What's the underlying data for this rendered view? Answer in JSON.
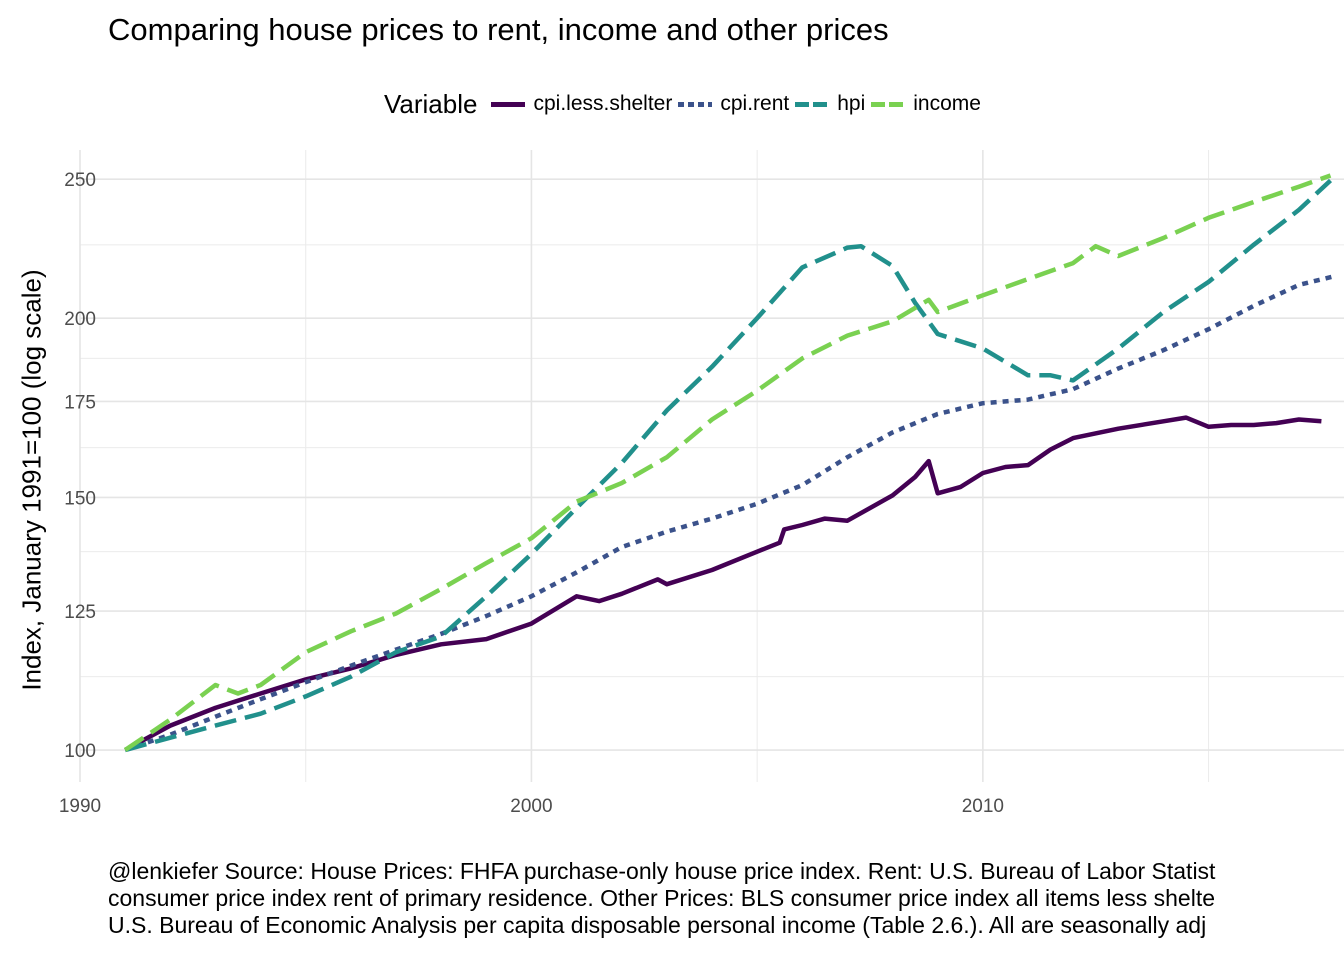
{
  "chart_data": {
    "type": "line",
    "title": "Comparing house prices to rent, income and other prices",
    "xlabel": "",
    "ylabel": "Index, January 1991=100 (log scale)",
    "y_scale": "log",
    "xlim": [
      1990,
      2018
    ],
    "ylim": [
      95,
      262
    ],
    "x_ticks": [
      1990,
      2000,
      2010
    ],
    "y_ticks": [
      100,
      125,
      150,
      175,
      200,
      250
    ],
    "grid": true,
    "legend_position": "top",
    "legend_title": "Variable",
    "caption": [
      "@lenkiefer Source: House Prices: FHFA purchase-only house price index. Rent: U.S. Bureau of Labor Statist",
      "consumer price index rent of primary residence. Other Prices: BLS consumer price index all items less shelte",
      "U.S. Bureau of Economic Analysis per capita disposable personal income (Table 2.6.). All are seasonally adj"
    ],
    "series": [
      {
        "name": "cpi.less.shelter",
        "color": "#440154",
        "style": "solid",
        "x": [
          1991,
          1992,
          1993,
          1994,
          1995,
          1996,
          1997,
          1998,
          1999,
          2000,
          2001,
          2001.5,
          2002,
          2002.8,
          2003,
          2004,
          2005,
          2005.5,
          2005.6,
          2006,
          2006.5,
          2007,
          2008,
          2008.5,
          2008.8,
          2009,
          2009.5,
          2010,
          2010.5,
          2011,
          2011.5,
          2012,
          2013,
          2014,
          2014.5,
          2015,
          2015.5,
          2016,
          2016.5,
          2017,
          2017.5
        ],
        "y": [
          100,
          104,
          107,
          109.5,
          112,
          114,
          116.5,
          118.5,
          119.5,
          122.5,
          128,
          127,
          128.5,
          131.5,
          130.5,
          133.5,
          137.5,
          139.5,
          142.5,
          143.5,
          145,
          144.5,
          150.5,
          155,
          159,
          151,
          152.5,
          156,
          157.5,
          158,
          162,
          165,
          167.5,
          169.5,
          170.5,
          168,
          168.5,
          168.5,
          169,
          170,
          169.5
        ]
      },
      {
        "name": "cpi.rent",
        "color": "#3b528b",
        "style": "dotted",
        "x": [
          1991,
          1992,
          1993,
          1994,
          1995,
          1996,
          1997,
          1998,
          1999,
          2000,
          2001,
          2002,
          2003,
          2004,
          2005,
          2006,
          2007,
          2008,
          2009,
          2010,
          2011,
          2012,
          2013,
          2014,
          2015,
          2016,
          2017,
          2017.8
        ],
        "y": [
          100,
          102.5,
          105.5,
          108.5,
          111.5,
          114.5,
          117.5,
          120.5,
          124,
          128,
          133,
          138.5,
          142,
          145,
          148.5,
          153,
          160,
          166.5,
          171.5,
          174.5,
          175.5,
          178.5,
          184.5,
          190,
          196.5,
          204,
          211,
          214
        ]
      },
      {
        "name": "hpi",
        "color": "#21908c",
        "style": "dashed",
        "x": [
          1991,
          1992,
          1993,
          1994,
          1995,
          1996,
          1997,
          1998,
          1999,
          2000,
          2001,
          2002,
          2003,
          2004,
          2005,
          2006,
          2007,
          2007.3,
          2008,
          2008.5,
          2009,
          2010,
          2011,
          2011.5,
          2012,
          2013,
          2014,
          2015,
          2016,
          2017,
          2017.7
        ],
        "y": [
          100,
          102,
          104,
          106,
          109,
          112.5,
          117,
          120,
          128,
          137,
          147.5,
          158.5,
          172.5,
          185,
          200,
          217,
          224,
          224.5,
          217.5,
          205,
          195,
          190.5,
          182.5,
          182.5,
          181,
          190.5,
          202,
          212,
          225,
          238,
          249.5
        ]
      },
      {
        "name": "income",
        "color": "#7ad151",
        "style": "dashed",
        "x": [
          1991,
          1992,
          1993,
          1993.5,
          1994,
          1995,
          1996,
          1997,
          1998,
          1999,
          2000,
          2001,
          2002,
          2003,
          2004,
          2005,
          2006,
          2007,
          2008,
          2008.8,
          2009,
          2010,
          2011,
          2012,
          2012.5,
          2013,
          2014,
          2015,
          2016,
          2017,
          2017.7
        ],
        "y": [
          100,
          105,
          111,
          109.5,
          111,
          117,
          121,
          124.5,
          129.5,
          135,
          140.5,
          149,
          153.5,
          160,
          170,
          178,
          187.5,
          194.5,
          199,
          206,
          202,
          207.5,
          213,
          218.5,
          224.5,
          221,
          227.5,
          235,
          241,
          247,
          251.5
        ]
      }
    ]
  }
}
